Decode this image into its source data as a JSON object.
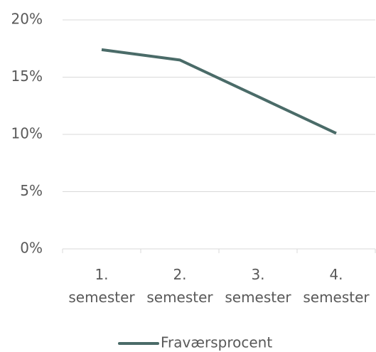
{
  "chart_data": {
    "type": "line",
    "categories": [
      "1. semester",
      "2. semester",
      "3. semester",
      "4. semester"
    ],
    "series": [
      {
        "name": "Fraværsprocent",
        "color": "#4a6b68",
        "values": [
          17.4,
          16.5,
          13.3,
          10.1
        ]
      }
    ],
    "ylim": [
      0,
      20
    ],
    "yticks": [
      {
        "value": 0,
        "label": "0%"
      },
      {
        "value": 5,
        "label": "5%"
      },
      {
        "value": 10,
        "label": "10%"
      },
      {
        "value": 15,
        "label": "15%"
      },
      {
        "value": 20,
        "label": "20%"
      }
    ],
    "grid": true,
    "legend": "bottom"
  }
}
